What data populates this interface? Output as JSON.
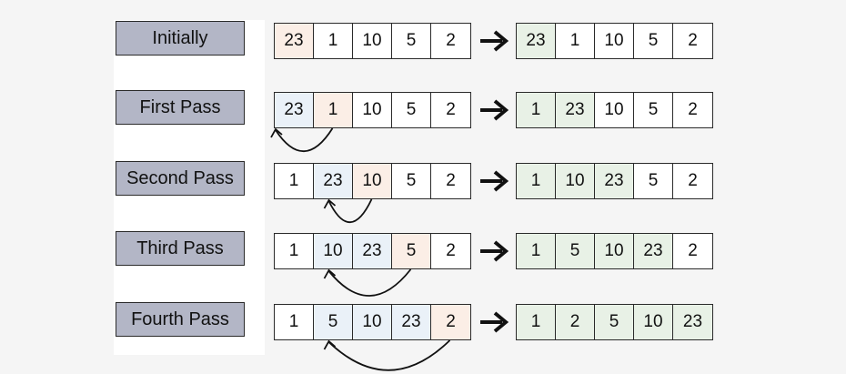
{
  "rows": [
    {
      "label": "Initially",
      "before": [
        "23",
        "1",
        "10",
        "5",
        "2"
      ],
      "before_states": [
        "key",
        "plain",
        "plain",
        "plain",
        "plain"
      ],
      "after": [
        "23",
        "1",
        "10",
        "5",
        "2"
      ],
      "after_states": [
        "done",
        "plain",
        "plain",
        "plain",
        "plain"
      ]
    },
    {
      "label": "First Pass",
      "before": [
        "23",
        "1",
        "10",
        "5",
        "2"
      ],
      "before_states": [
        "cmp",
        "key",
        "plain",
        "plain",
        "plain"
      ],
      "after": [
        "1",
        "23",
        "10",
        "5",
        "2"
      ],
      "after_states": [
        "done",
        "done",
        "plain",
        "plain",
        "plain"
      ]
    },
    {
      "label": "Second Pass",
      "before": [
        "1",
        "23",
        "10",
        "5",
        "2"
      ],
      "before_states": [
        "plain",
        "cmp",
        "key",
        "plain",
        "plain"
      ],
      "after": [
        "1",
        "10",
        "23",
        "5",
        "2"
      ],
      "after_states": [
        "done",
        "done",
        "done",
        "plain",
        "plain"
      ]
    },
    {
      "label": "Third Pass",
      "before": [
        "1",
        "10",
        "23",
        "5",
        "2"
      ],
      "before_states": [
        "plain",
        "cmp",
        "cmp",
        "key",
        "plain"
      ],
      "after": [
        "1",
        "5",
        "10",
        "23",
        "2"
      ],
      "after_states": [
        "done",
        "done",
        "done",
        "done",
        "plain"
      ]
    },
    {
      "label": "Fourth Pass",
      "before": [
        "1",
        "5",
        "10",
        "23",
        "2"
      ],
      "before_states": [
        "plain",
        "cmp",
        "cmp",
        "cmp",
        "key"
      ],
      "after": [
        "1",
        "2",
        "5",
        "10",
        "23"
      ],
      "after_states": [
        "done",
        "done",
        "done",
        "done",
        "done"
      ]
    }
  ],
  "colors": {
    "key": "#fbeee6",
    "cmp": "#eaf1f8",
    "done": "#e8f1e6",
    "label_bg": "#b3b6c6"
  }
}
